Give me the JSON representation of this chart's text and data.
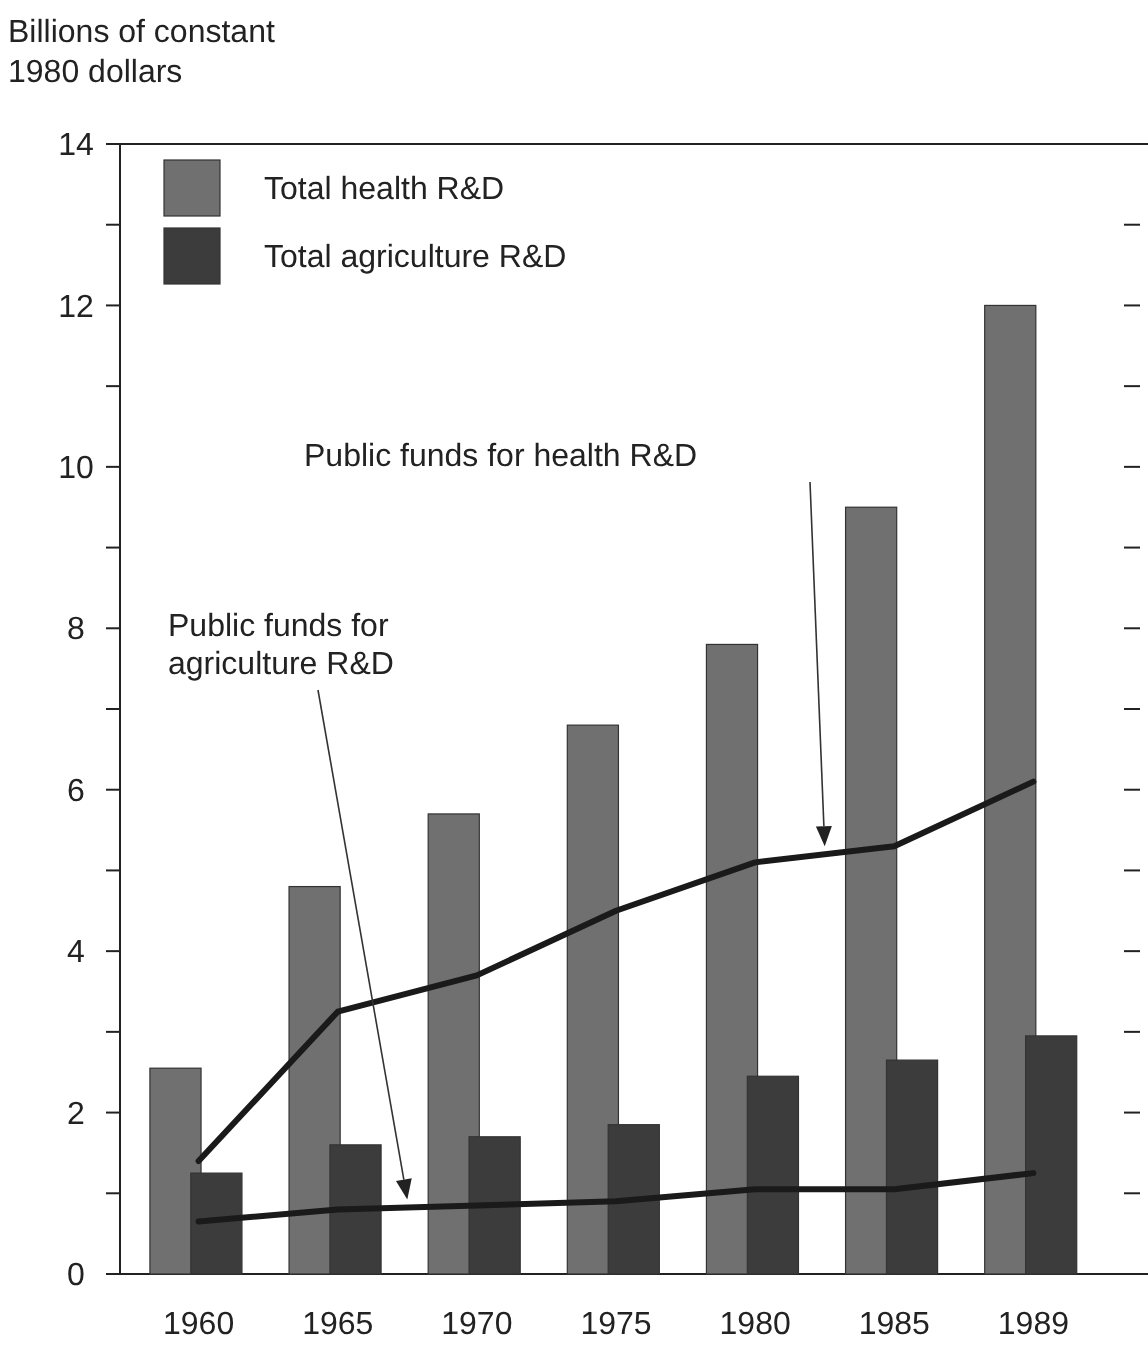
{
  "chart_data": {
    "type": "bar",
    "ylabel": "Billions of constant\n1980 dollars",
    "categories": [
      "1960",
      "1965",
      "1970",
      "1975",
      "1980",
      "1985",
      "1989"
    ],
    "series": [
      {
        "name": "Total health R&D",
        "color": "#707070",
        "values": [
          2.55,
          4.8,
          5.7,
          6.8,
          7.8,
          9.5,
          12.0
        ]
      },
      {
        "name": "Total agriculture R&D",
        "color": "#3c3c3c",
        "values": [
          1.25,
          1.6,
          1.7,
          1.85,
          2.45,
          2.65,
          2.95
        ]
      },
      {
        "type": "line",
        "color": "#1a1a1a",
        "values": [
          1.4,
          3.25,
          3.7,
          4.5,
          5.1,
          5.3,
          6.1
        ]
      },
      {
        "type": "line",
        "color": "#1a1a1a",
        "values": [
          0.65,
          0.8,
          0.85,
          0.9,
          1.05,
          1.05,
          1.25
        ]
      }
    ],
    "annotations": [
      "Public funds for health R&D",
      "Public funds for\nagriculture R&D"
    ],
    "ylim": [
      0,
      14
    ],
    "yticks": [
      0,
      {
        "value": 1,
        "label": null
      },
      2,
      {
        "value": 3,
        "label": null
      },
      4,
      {
        "value": 5,
        "label": null
      },
      6,
      {
        "value": 7,
        "label": null
      },
      8,
      {
        "value": 9,
        "label": null
      },
      10,
      {
        "value": 11,
        "label": null
      },
      12,
      {
        "value": 13,
        "label": null
      },
      14
    ],
    "legend": "top left",
    "marker": "none",
    "line_style": "solid",
    "grid": false
  }
}
